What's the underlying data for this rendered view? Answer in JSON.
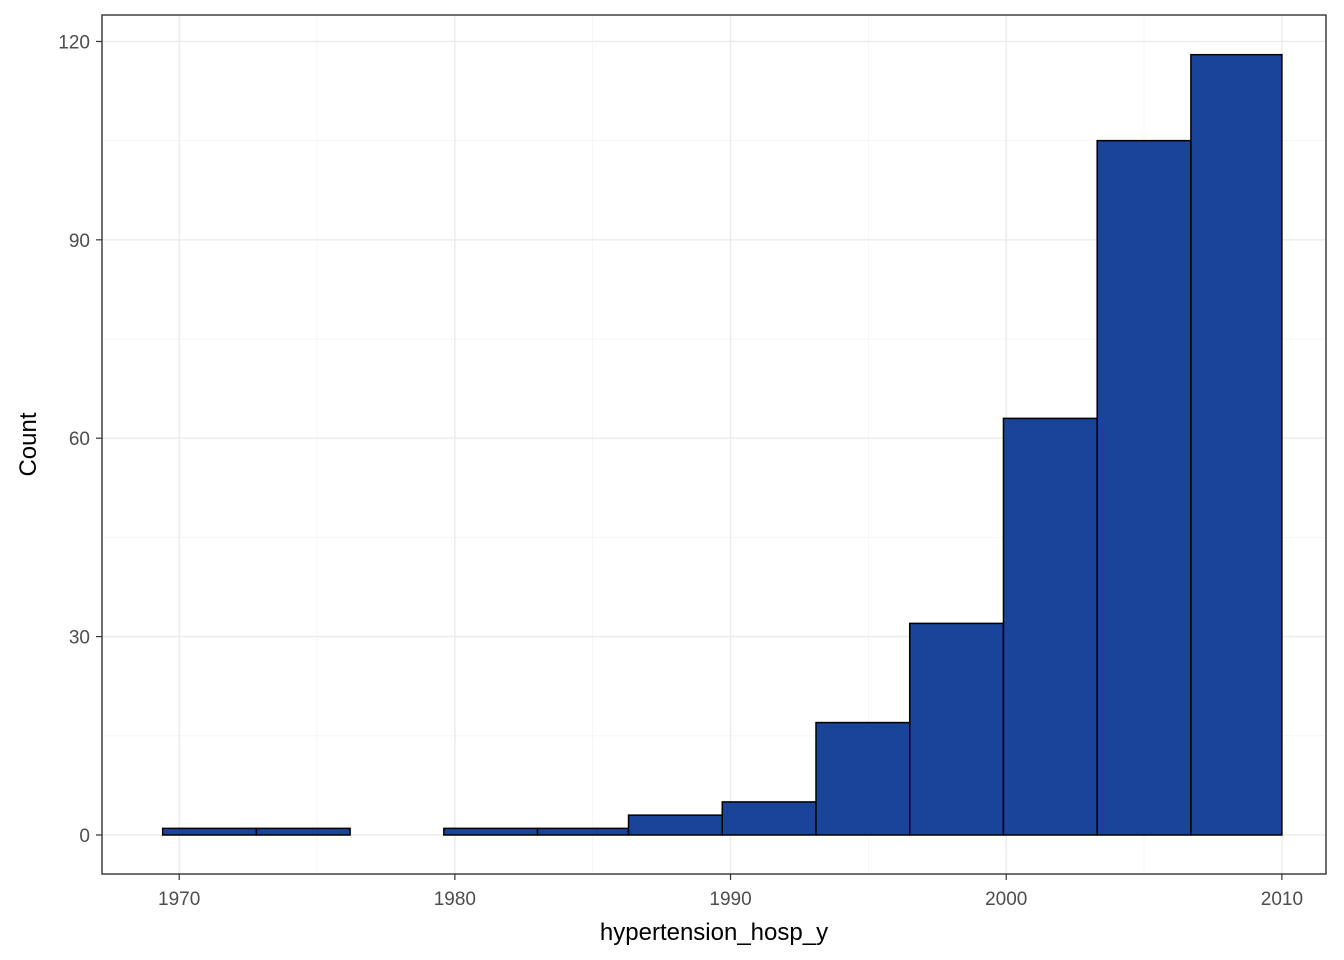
{
  "chart_data": {
    "type": "bar",
    "xlabel": "hypertension_hosp_y",
    "ylabel": "Count",
    "x_ticks": [
      1970,
      1980,
      1990,
      2000,
      2010
    ],
    "y_ticks": [
      0,
      30,
      60,
      90,
      120
    ],
    "x_tick_labels": [
      "1970",
      "1980",
      "1990",
      "2000",
      "2010"
    ],
    "y_tick_labels": [
      "0",
      "30",
      "60",
      "90",
      "120"
    ],
    "xlim": [
      1967.2,
      2011.6
    ],
    "ylim": [
      -5.9,
      124
    ],
    "bins": [
      {
        "x_start": 1969.4,
        "x_end": 1972.8,
        "count": 1
      },
      {
        "x_start": 1972.8,
        "x_end": 1976.2,
        "count": 1
      },
      {
        "x_start": 1976.2,
        "x_end": 1979.6,
        "count": 0
      },
      {
        "x_start": 1979.6,
        "x_end": 1983.0,
        "count": 1
      },
      {
        "x_start": 1983.0,
        "x_end": 1986.3,
        "count": 1
      },
      {
        "x_start": 1986.3,
        "x_end": 1989.7,
        "count": 3
      },
      {
        "x_start": 1989.7,
        "x_end": 1993.1,
        "count": 5
      },
      {
        "x_start": 1993.1,
        "x_end": 1996.5,
        "count": 17
      },
      {
        "x_start": 1996.5,
        "x_end": 1999.9,
        "count": 32
      },
      {
        "x_start": 1999.9,
        "x_end": 2003.3,
        "count": 63
      },
      {
        "x_start": 2003.3,
        "x_end": 2006.7,
        "count": 105
      },
      {
        "x_start": 2006.7,
        "x_end": 2010.0,
        "count": 118
      }
    ],
    "grid": true,
    "colors": {
      "fill": "#1a4499",
      "outline": "#000000",
      "panel_border": "#333333",
      "grid": "#ebebeb"
    }
  }
}
